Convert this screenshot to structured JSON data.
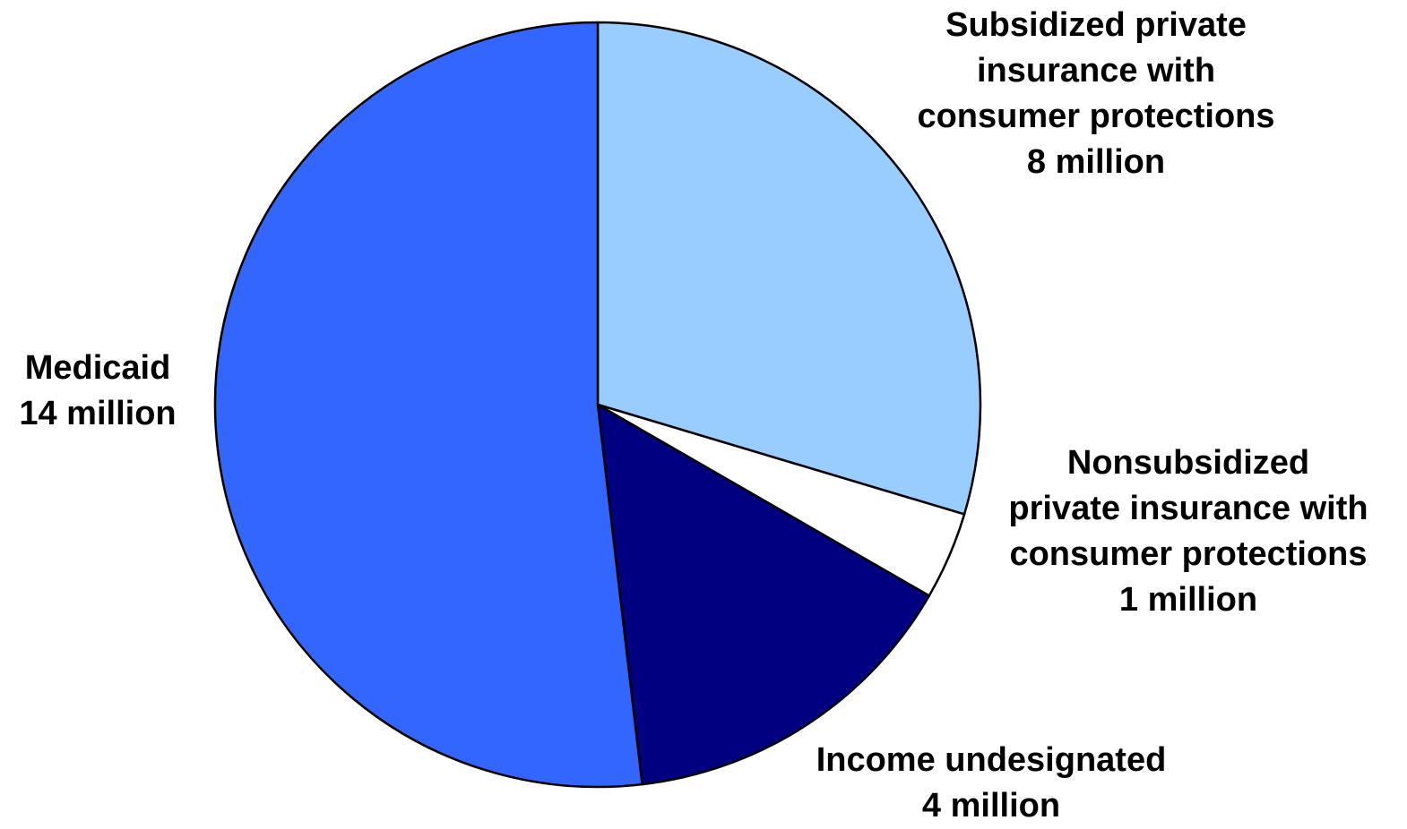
{
  "chart_data": {
    "type": "pie",
    "title": "",
    "start_angle_deg": 0,
    "direction": "clockwise",
    "slices": [
      {
        "label_lines": [
          "Subsidized private",
          "insurance with",
          "consumer protections",
          "8 million"
        ],
        "name": "Subsidized private insurance with consumer protections",
        "value": 8,
        "display_value": "8 million",
        "color": "#99CCFF"
      },
      {
        "label_lines": [
          "Nonsubsidized",
          "private insurance with",
          "consumer protections",
          "1 million"
        ],
        "name": "Nonsubsidized private insurance with consumer protections",
        "value": 1,
        "display_value": "1 million",
        "color": "#FFFFFF"
      },
      {
        "label_lines": [
          "Income undesignated",
          "4 million"
        ],
        "name": "Income undesignated",
        "value": 4,
        "display_value": "4 million",
        "color": "#000080"
      },
      {
        "label_lines": [
          "Medicaid",
          "14 million"
        ],
        "name": "Medicaid",
        "value": 14,
        "display_value": "14 million",
        "color": "#3366FF"
      }
    ],
    "legend": "none (direct labels)"
  }
}
